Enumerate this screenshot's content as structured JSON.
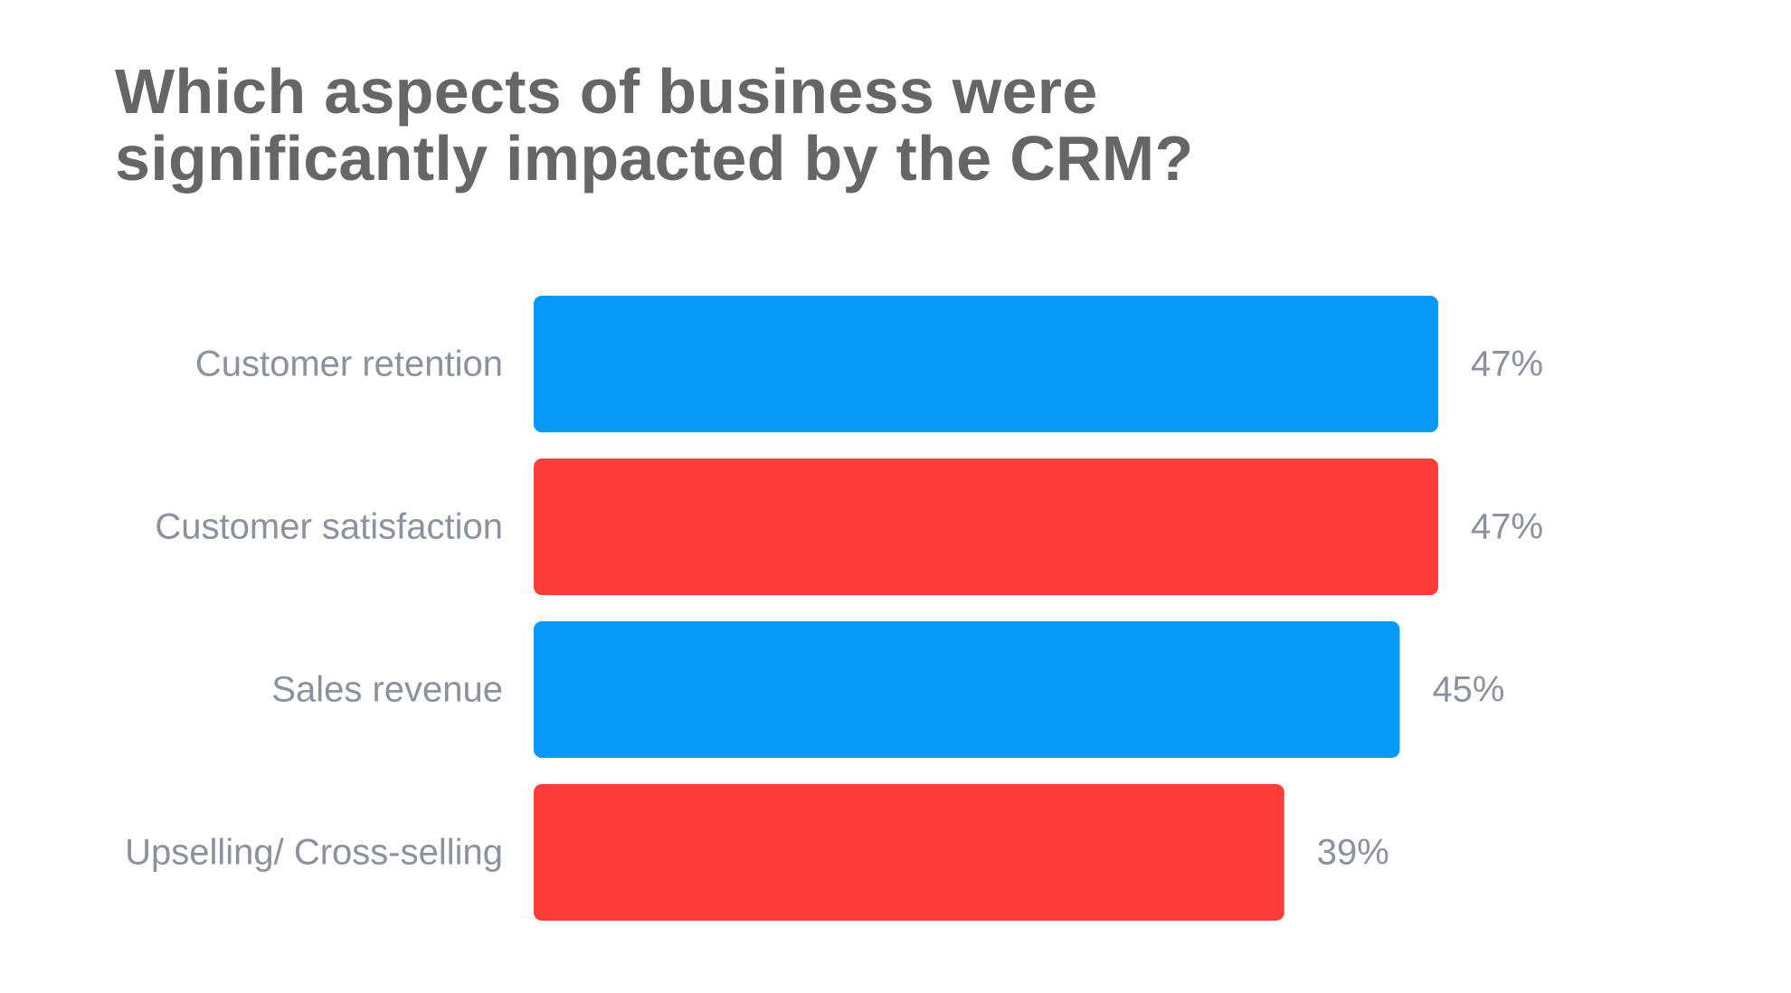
{
  "chart_data": {
    "type": "bar",
    "orientation": "horizontal",
    "title_lines": [
      "Which aspects of business were",
      "significantly impacted by the CRM?"
    ],
    "categories": [
      "Customer retention",
      "Customer satisfaction",
      "Sales revenue",
      "Upselling/ Cross-selling"
    ],
    "values": [
      47,
      47,
      45,
      39
    ],
    "value_labels": [
      "47%",
      "47%",
      "45%",
      "39%"
    ],
    "bar_colors": [
      "#0699f5",
      "#fc3d3a",
      "#0699f5",
      "#fc3d3a"
    ],
    "unit": "%",
    "grid": false,
    "legend": "none"
  }
}
